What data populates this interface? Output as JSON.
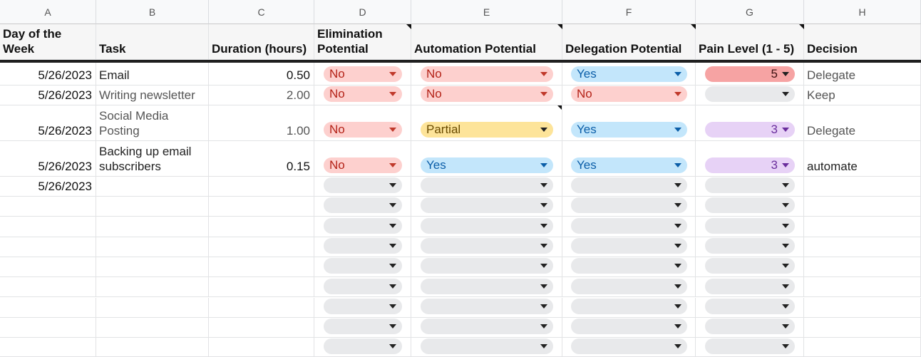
{
  "columns": [
    "A",
    "B",
    "C",
    "D",
    "E",
    "F",
    "G",
    "H"
  ],
  "headers": {
    "a": "Day of the Week",
    "b": "Task",
    "c": "Duration (hours)",
    "d": "Elimination Potential",
    "e": "Automation Potential",
    "f": "Delegation Potential",
    "g": "Pain Level (1 - 5)",
    "h": "Decision"
  },
  "rows": [
    {
      "date": "5/26/2023",
      "task": "Email",
      "duration": "0.50",
      "elim": "No",
      "auto": "No",
      "deleg": "Yes",
      "pain": "5",
      "decision": "Delegate"
    },
    {
      "date": "5/26/2023",
      "task": "Writing newsletter",
      "duration": "2.00",
      "elim": "No",
      "auto": "No",
      "deleg": "No",
      "pain": "",
      "decision": "Keep"
    },
    {
      "date": "5/26/2023",
      "task": "Social Media Posting",
      "duration": "1.00",
      "elim": "No",
      "auto": "Partial",
      "deleg": "Yes",
      "pain": "3",
      "decision": "Delegate"
    },
    {
      "date": "5/26/2023",
      "task": "Backing up email subscribers",
      "duration": "0.15",
      "elim": "No",
      "auto": "Yes",
      "deleg": "Yes",
      "pain": "3",
      "decision": "automate"
    },
    {
      "date": "5/26/2023",
      "task": "",
      "duration": "",
      "elim": "",
      "auto": "",
      "deleg": "",
      "pain": "",
      "decision": ""
    }
  ],
  "colors": {
    "no": "#fdd0ce",
    "yes": "#c3e6fb",
    "partial": "#fde49a",
    "pain_high": "#f6a3a3",
    "pain_mid": "#e7d2f6",
    "empty": "#e8e9eb"
  }
}
